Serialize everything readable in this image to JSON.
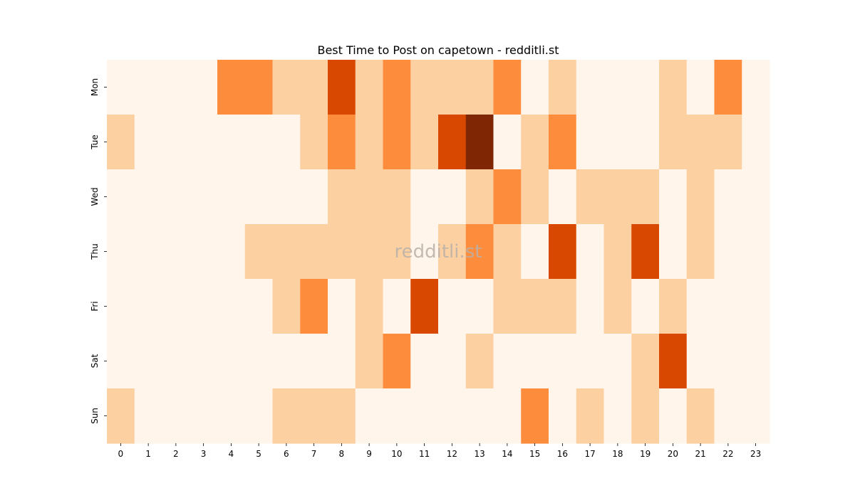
{
  "chart_data": {
    "type": "heatmap",
    "title": "Best Time to Post on capetown - redditli.st",
    "watermark": "redditli.st",
    "x_categories": [
      "0",
      "1",
      "2",
      "3",
      "4",
      "5",
      "6",
      "7",
      "8",
      "9",
      "10",
      "11",
      "12",
      "13",
      "14",
      "15",
      "16",
      "17",
      "18",
      "19",
      "20",
      "21",
      "22",
      "23"
    ],
    "y_categories": [
      "Mon",
      "Tue",
      "Wed",
      "Thu",
      "Fri",
      "Sat",
      "Sun"
    ],
    "values": [
      [
        0,
        0,
        0,
        0,
        2,
        2,
        1,
        1,
        3,
        1,
        2,
        1,
        1,
        1,
        2,
        0,
        1,
        0,
        0,
        0,
        1,
        0,
        2,
        0
      ],
      [
        1,
        0,
        0,
        0,
        0,
        0,
        0,
        1,
        2,
        1,
        2,
        1,
        3,
        4,
        0,
        1,
        2,
        0,
        0,
        0,
        1,
        1,
        1,
        0
      ],
      [
        0,
        0,
        0,
        0,
        0,
        0,
        0,
        0,
        1,
        1,
        1,
        0,
        0,
        1,
        2,
        1,
        0,
        1,
        1,
        1,
        0,
        1,
        0,
        0
      ],
      [
        0,
        0,
        0,
        0,
        0,
        1,
        1,
        1,
        1,
        1,
        1,
        0,
        1,
        2,
        1,
        0,
        3,
        0,
        1,
        3,
        0,
        1,
        0,
        0
      ],
      [
        0,
        0,
        0,
        0,
        0,
        0,
        1,
        2,
        0,
        1,
        0,
        3,
        0,
        0,
        1,
        1,
        1,
        0,
        1,
        0,
        1,
        0,
        0,
        0
      ],
      [
        0,
        0,
        0,
        0,
        0,
        0,
        0,
        0,
        0,
        1,
        2,
        0,
        0,
        1,
        0,
        0,
        0,
        0,
        0,
        1,
        3,
        0,
        0,
        0
      ],
      [
        1,
        0,
        0,
        0,
        0,
        0,
        1,
        1,
        1,
        0,
        0,
        0,
        0,
        0,
        0,
        2,
        0,
        1,
        0,
        1,
        0,
        1,
        0,
        0
      ]
    ],
    "value_range": [
      0,
      4
    ],
    "colormap": [
      "#fff5eb",
      "#fdd0a2",
      "#fd8d3c",
      "#d94801",
      "#7f2704"
    ],
    "colorbar": false,
    "grid": false
  }
}
